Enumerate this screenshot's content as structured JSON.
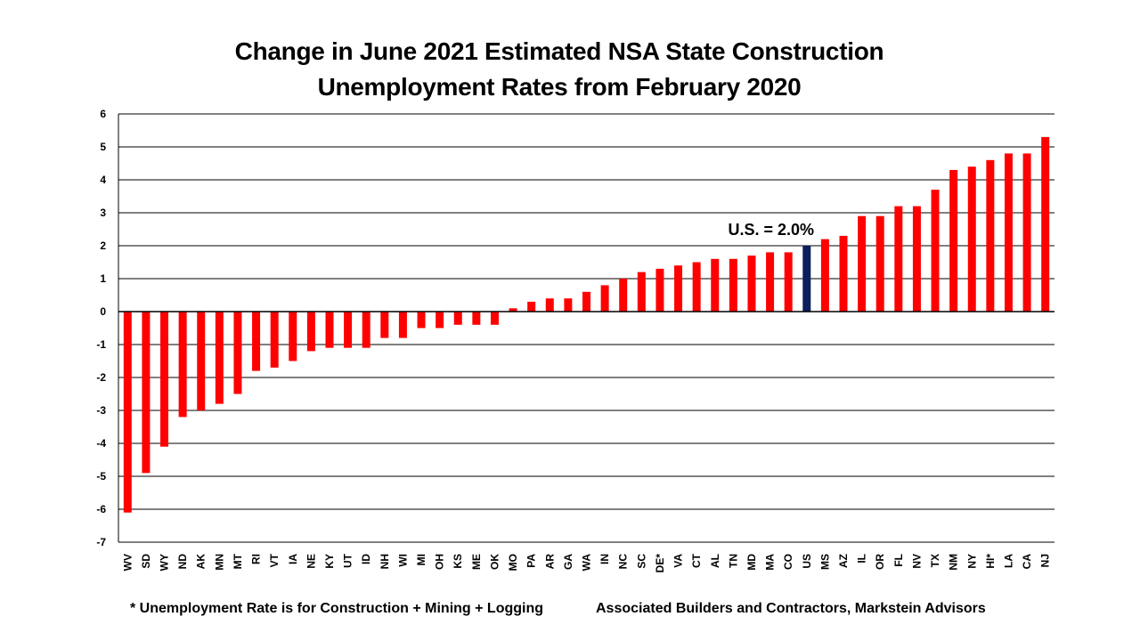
{
  "chart_data": {
    "type": "bar",
    "title_line1": "Change in June 2021 Estimated NSA State Construction",
    "title_line2": "Unemployment Rates from February 2020",
    "xlabel": "",
    "ylabel": "",
    "ylim": [
      -7,
      6
    ],
    "yticks": [
      6,
      5,
      4,
      3,
      2,
      1,
      0,
      -1,
      -2,
      -3,
      -4,
      -5,
      -6,
      -7
    ],
    "grid": true,
    "categories": [
      "WV",
      "SD",
      "WY",
      "ND",
      "AK",
      "MN",
      "MT",
      "RI",
      "VT",
      "IA",
      "NE",
      "KY",
      "UT",
      "ID",
      "NH",
      "WI",
      "MI",
      "OH",
      "KS",
      "ME",
      "OK",
      "MO",
      "PA",
      "AR",
      "GA",
      "WA",
      "IN",
      "NC",
      "SC",
      "DE*",
      "VA",
      "CT",
      "AL",
      "TN",
      "MD",
      "MA",
      "CO",
      "US",
      "MS",
      "AZ",
      "IL",
      "OR",
      "FL",
      "NV",
      "TX",
      "NM",
      "NY",
      "HI*",
      "LA",
      "CA",
      "NJ"
    ],
    "values": [
      -6.1,
      -4.9,
      -4.1,
      -3.2,
      -3.0,
      -2.8,
      -2.5,
      -1.8,
      -1.7,
      -1.5,
      -1.2,
      -1.1,
      -1.1,
      -1.1,
      -0.8,
      -0.8,
      -0.5,
      -0.5,
      -0.4,
      -0.4,
      -0.4,
      0.1,
      0.3,
      0.4,
      0.4,
      0.6,
      0.8,
      1.0,
      1.2,
      1.3,
      1.4,
      1.5,
      1.6,
      1.6,
      1.7,
      1.8,
      1.8,
      2.0,
      2.2,
      2.3,
      2.9,
      2.9,
      3.2,
      3.2,
      3.7,
      4.3,
      4.4,
      4.6,
      4.8,
      4.8,
      5.3
    ],
    "highlight_category": "US",
    "colors": {
      "bar": "#ff0000",
      "highlight": "#0a1f5c",
      "grid": "#000000"
    },
    "annotation": "U.S. = 2.0%"
  },
  "footnotes": {
    "left": "* Unemployment Rate is for Construction + Mining + Logging",
    "right": "Associated Builders and Contractors, Markstein Advisors"
  }
}
